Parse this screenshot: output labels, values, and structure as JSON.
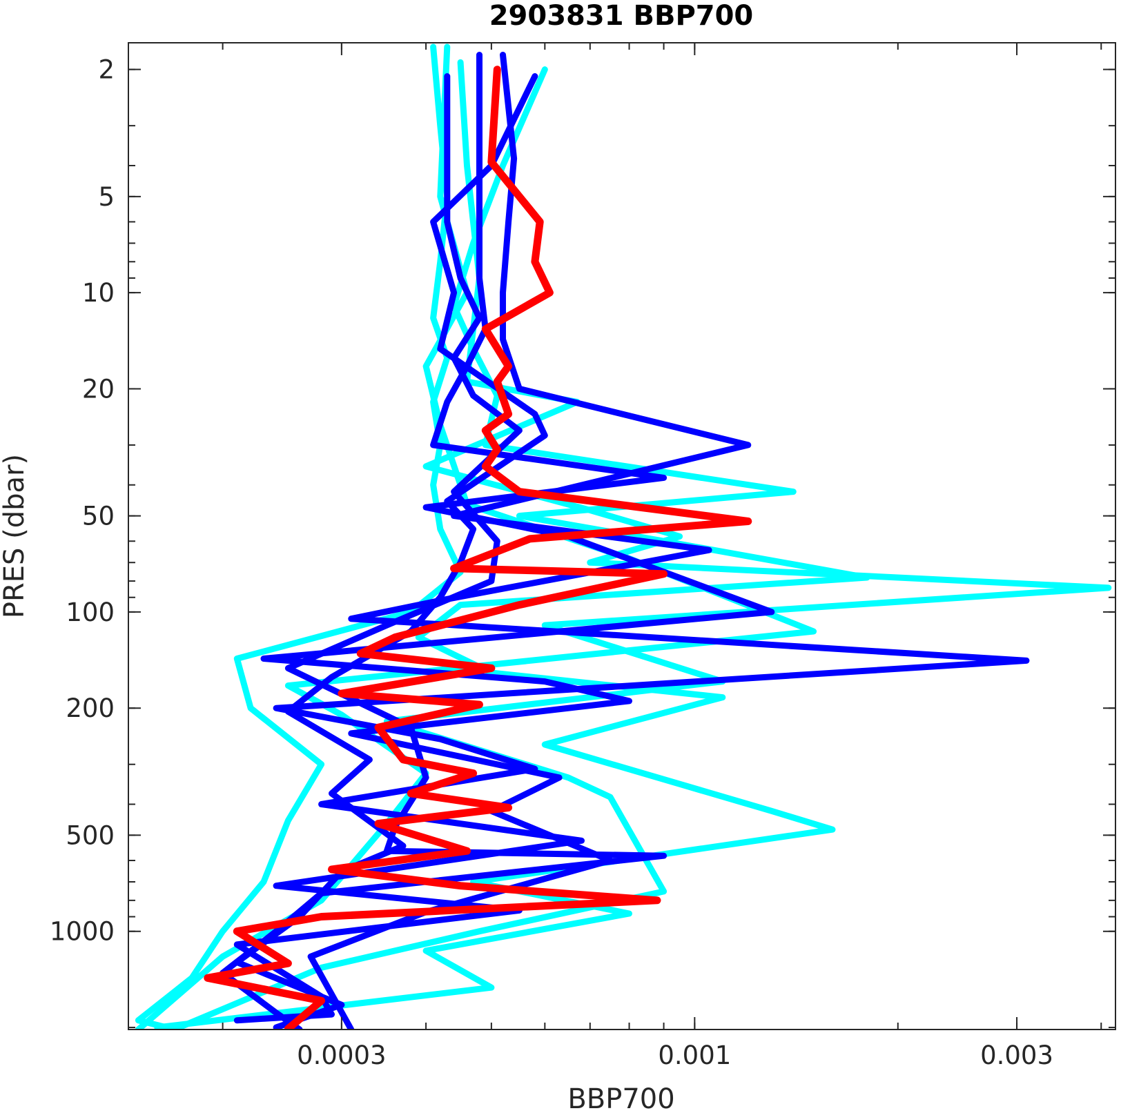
{
  "chart_data": {
    "type": "line",
    "title": "2903831 BBP700",
    "xlabel": "BBP700",
    "ylabel": "PRES (dbar)",
    "x_scale": "log",
    "y_scale": "log",
    "y_reversed": true,
    "xlim": [
      0.000145,
      0.0042
    ],
    "ylim": [
      1.65,
      2030
    ],
    "x_ticks": [
      0.0003,
      0.001,
      0.003
    ],
    "x_tick_labels": [
      "0.0003",
      "0.001",
      "0.003"
    ],
    "y_ticks": [
      2,
      5,
      10,
      20,
      50,
      100,
      200,
      500,
      1000
    ],
    "y_tick_labels": [
      "2",
      "5",
      "10",
      "20",
      "50",
      "100",
      "200",
      "500",
      "1000"
    ],
    "grid": false,
    "colors": {
      "older_profiles": "#00ffff",
      "recent_profiles": "#0000ff",
      "latest_profile": "#ff0000"
    },
    "series": [
      {
        "color": "#00ffff",
        "points": [
          [
            0.00041,
            1.7
          ],
          [
            0.00042,
            3
          ],
          [
            0.00043,
            5
          ],
          [
            0.00042,
            8
          ],
          [
            0.00041,
            12
          ],
          [
            0.00043,
            16
          ],
          [
            0.00041,
            22
          ],
          [
            0.00042,
            30
          ],
          [
            0.00041,
            40
          ],
          [
            0.00042,
            55
          ],
          [
            0.00045,
            75
          ],
          [
            0.00038,
            100
          ],
          [
            0.00021,
            140
          ],
          [
            0.00022,
            200
          ],
          [
            0.00028,
            300
          ],
          [
            0.00025,
            450
          ],
          [
            0.00023,
            700
          ],
          [
            0.0002,
            1000
          ],
          [
            0.00018,
            1400
          ],
          [
            0.00015,
            1900
          ],
          [
            0.00017,
            2030
          ]
        ]
      },
      {
        "color": "#00ffff",
        "points": [
          [
            0.0006,
            2
          ],
          [
            0.00052,
            4
          ],
          [
            0.00047,
            7
          ],
          [
            0.00044,
            11
          ],
          [
            0.00047,
            15
          ],
          [
            0.00051,
            21
          ],
          [
            0.00049,
            30
          ],
          [
            0.0014,
            42
          ],
          [
            0.00055,
            50
          ],
          [
            0.0009,
            60
          ],
          [
            0.0018,
            78
          ],
          [
            0.00045,
            95
          ],
          [
            0.00039,
            120
          ],
          [
            0.0005,
            155
          ],
          [
            0.0011,
            185
          ],
          [
            0.0006,
            260
          ],
          [
            0.0013,
            420
          ],
          [
            0.0016,
            480
          ],
          [
            0.00047,
            700
          ],
          [
            0.0008,
            880
          ],
          [
            0.0004,
            1150
          ],
          [
            0.0005,
            1500
          ],
          [
            0.00016,
            2000
          ]
        ]
      },
      {
        "color": "#00ffff",
        "points": [
          [
            0.00045,
            1.9
          ],
          [
            0.00046,
            4
          ],
          [
            0.00048,
            9
          ],
          [
            0.00047,
            13
          ],
          [
            0.00046,
            19
          ],
          [
            0.00067,
            22
          ],
          [
            0.0004,
            35
          ],
          [
            0.0007,
            48
          ],
          [
            0.00095,
            58
          ],
          [
            0.0007,
            70
          ],
          [
            0.0041,
            84
          ],
          [
            0.0006,
            110
          ],
          [
            0.0011,
            165
          ],
          [
            0.00035,
            220
          ],
          [
            0.00065,
            330
          ],
          [
            0.00075,
            380
          ],
          [
            0.0009,
            750
          ],
          [
            0.00048,
            1000
          ],
          [
            0.00028,
            1300
          ],
          [
            0.00017,
            2025
          ]
        ]
      },
      {
        "color": "#00ffff",
        "points": [
          [
            0.00043,
            1.7
          ],
          [
            0.00042,
            5
          ],
          [
            0.00046,
            10
          ],
          [
            0.0004,
            17
          ],
          [
            0.00042,
            26
          ],
          [
            0.00046,
            46
          ],
          [
            0.0008,
            68
          ],
          [
            0.0015,
            115
          ],
          [
            0.00025,
            170
          ],
          [
            0.0003,
            210
          ],
          [
            0.0004,
            320
          ],
          [
            0.00035,
            460
          ],
          [
            0.00028,
            800
          ],
          [
            0.0002,
            1200
          ],
          [
            0.00015,
            2030
          ]
        ]
      },
      {
        "color": "#0000ff",
        "points": [
          [
            0.00048,
            1.8
          ],
          [
            0.00048,
            5
          ],
          [
            0.00048,
            9
          ],
          [
            0.00049,
            13
          ],
          [
            0.00046,
            17
          ],
          [
            0.00043,
            22
          ],
          [
            0.00041,
            30
          ],
          [
            0.0009,
            38
          ],
          [
            0.0004,
            47
          ],
          [
            0.00065,
            58
          ],
          [
            0.0013,
            100
          ],
          [
            0.00023,
            140
          ],
          [
            0.0006,
            165
          ],
          [
            0.0008,
            190
          ],
          [
            0.00031,
            240
          ],
          [
            0.00063,
            330
          ],
          [
            0.0005,
            420
          ],
          [
            0.00075,
            600
          ],
          [
            0.0004,
            870
          ],
          [
            0.00027,
            1200
          ],
          [
            0.00031,
            2030
          ]
        ]
      },
      {
        "color": "#0000ff",
        "points": [
          [
            0.00052,
            1.8
          ],
          [
            0.00054,
            3.8
          ],
          [
            0.00053,
            6
          ],
          [
            0.00052,
            10
          ],
          [
            0.00052,
            14
          ],
          [
            0.00055,
            20
          ],
          [
            0.0012,
            30
          ],
          [
            0.00044,
            50
          ],
          [
            0.00105,
            64
          ],
          [
            0.00042,
            92
          ],
          [
            0.00031,
            105
          ],
          [
            0.0031,
            142
          ],
          [
            0.00024,
            200
          ],
          [
            0.00042,
            250
          ],
          [
            0.00058,
            310
          ],
          [
            0.00028,
            400
          ],
          [
            0.00068,
            520
          ],
          [
            0.00024,
            720
          ],
          [
            0.00055,
            860
          ],
          [
            0.00021,
            1100
          ],
          [
            0.00028,
            1600
          ],
          [
            0.00029,
            1820
          ],
          [
            0.00021,
            1900
          ]
        ]
      },
      {
        "color": "#0000ff",
        "points": [
          [
            0.00058,
            2.1
          ],
          [
            0.0005,
            4
          ],
          [
            0.00041,
            6
          ],
          [
            0.00044,
            10
          ],
          [
            0.00042,
            15
          ],
          [
            0.00058,
            24
          ],
          [
            0.0006,
            28
          ],
          [
            0.00043,
            45
          ],
          [
            0.00047,
            55
          ],
          [
            0.00045,
            70
          ],
          [
            0.00042,
            90
          ],
          [
            0.00038,
            115
          ],
          [
            0.00029,
            160
          ],
          [
            0.00025,
            205
          ],
          [
            0.00033,
            290
          ],
          [
            0.00029,
            370
          ],
          [
            0.00037,
            540
          ],
          [
            0.0003,
            650
          ],
          [
            0.00026,
            900
          ],
          [
            0.00021,
            1250
          ],
          [
            0.0003,
            1700
          ],
          [
            0.00024,
            2000
          ]
        ]
      },
      {
        "color": "#0000ff",
        "points": [
          [
            0.00043,
            2.1
          ],
          [
            0.00043,
            6
          ],
          [
            0.00045,
            9
          ],
          [
            0.00048,
            12
          ],
          [
            0.00044,
            16
          ],
          [
            0.00047,
            21
          ],
          [
            0.00055,
            27
          ],
          [
            0.00044,
            42
          ],
          [
            0.00051,
            60
          ],
          [
            0.0005,
            80
          ],
          [
            0.00035,
            110
          ],
          [
            0.00025,
            150
          ],
          [
            0.00038,
            230
          ],
          [
            0.0004,
            330
          ],
          [
            0.00036,
            470
          ],
          [
            0.00035,
            560
          ],
          [
            0.0009,
            580
          ],
          [
            0.00028,
            760
          ],
          [
            0.00024,
            1000
          ],
          [
            0.0002,
            1350
          ],
          [
            0.00024,
            1800
          ],
          [
            0.00026,
            2030
          ]
        ]
      },
      {
        "color": "#ff0000",
        "points": [
          [
            0.00051,
            2.0
          ],
          [
            0.0005,
            3.9
          ],
          [
            0.00055,
            5
          ],
          [
            0.00059,
            6
          ],
          [
            0.00058,
            8
          ],
          [
            0.00061,
            10
          ],
          [
            0.00049,
            13
          ],
          [
            0.00053,
            17
          ],
          [
            0.00051,
            19
          ],
          [
            0.00053,
            24
          ],
          [
            0.00049,
            27
          ],
          [
            0.00051,
            31
          ],
          [
            0.00049,
            35
          ],
          [
            0.00055,
            42
          ],
          [
            0.0012,
            52
          ],
          [
            0.00057,
            59
          ],
          [
            0.00044,
            73
          ],
          [
            0.0009,
            76
          ],
          [
            0.00055,
            95
          ],
          [
            0.00036,
            120
          ],
          [
            0.00032,
            135
          ],
          [
            0.0005,
            150
          ],
          [
            0.0003,
            180
          ],
          [
            0.00048,
            195
          ],
          [
            0.00034,
            230
          ],
          [
            0.00037,
            290
          ],
          [
            0.00047,
            320
          ],
          [
            0.00038,
            370
          ],
          [
            0.00053,
            410
          ],
          [
            0.00034,
            460
          ],
          [
            0.00046,
            560
          ],
          [
            0.00029,
            640
          ],
          [
            0.00045,
            720
          ],
          [
            0.00088,
            800
          ],
          [
            0.00028,
            900
          ],
          [
            0.00021,
            1000
          ],
          [
            0.00025,
            1260
          ],
          [
            0.00019,
            1400
          ],
          [
            0.00028,
            1650
          ],
          [
            0.00025,
            2020
          ]
        ]
      }
    ]
  }
}
